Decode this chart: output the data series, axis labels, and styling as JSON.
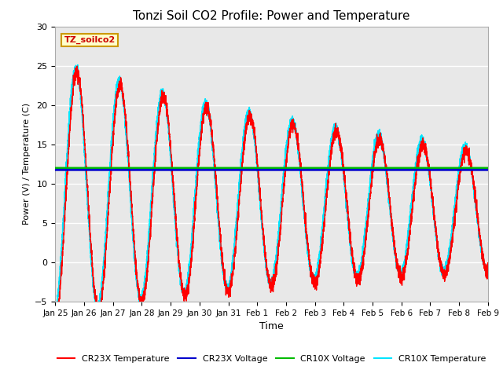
{
  "title": "Tonzi Soil CO2 Profile: Power and Temperature",
  "ylabel": "Power (V) / Temperature (C)",
  "xlabel": "Time",
  "ylim": [
    -5,
    30
  ],
  "yticks": [
    -5,
    0,
    5,
    10,
    15,
    20,
    25,
    30
  ],
  "x_tick_labels": [
    "Jan 25",
    "Jan 26",
    "Jan 27",
    "Jan 28",
    "Jan 29",
    "Jan 30",
    "Jan 31",
    "Feb 1",
    "Feb 2",
    "Feb 3",
    "Feb 4",
    "Feb 5",
    "Feb 6",
    "Feb 7",
    "Feb 8",
    "Feb 9"
  ],
  "cr23x_voltage": 11.75,
  "cr10x_voltage": 11.95,
  "cr23x_color": "#ff0000",
  "cr10x_color": "#00e5ff",
  "cr23x_voltage_color": "#0000cc",
  "cr10x_voltage_color": "#00bb00",
  "plot_bg_color": "#e8e8e8",
  "legend_label": "TZ_soilco2",
  "legend_bg": "#ffffcc",
  "legend_border": "#cc9900"
}
